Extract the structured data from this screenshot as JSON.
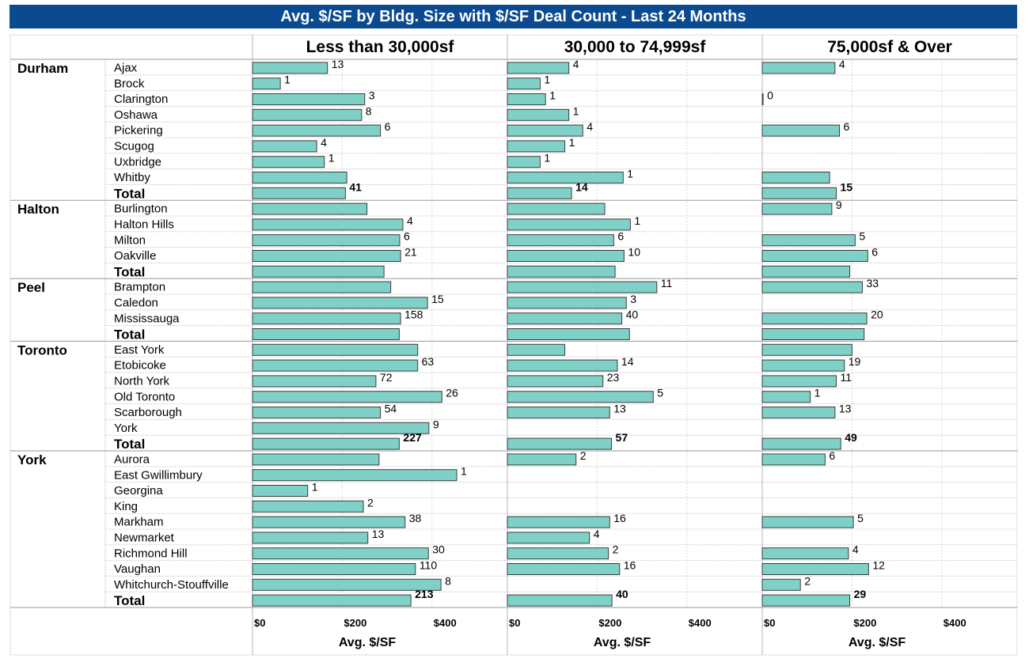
{
  "title": "Avg. $/SF by Bldg. Size with $/SF Deal Count - Last 24 Months",
  "colors": {
    "bar": "#7fd1c8",
    "bar_stroke": "#3c3c3c",
    "title_bg": "#0c4a8f"
  },
  "chart_data": {
    "type": "bar",
    "orientation": "horizontal",
    "columns": [
      "Less than 30,000sf",
      "30,000 to 74,999sf",
      "75,000sf & Over"
    ],
    "xlabel": "Avg. $/SF",
    "xlim": [
      0,
      550
    ],
    "xticks": [
      0,
      200,
      400
    ],
    "xtick_labels": [
      "$0",
      "$200",
      "$400"
    ],
    "grid": true,
    "groups": [
      {
        "region": "Durham",
        "rows": [
          {
            "label": "Ajax",
            "values": [
              167,
              137,
              162
            ],
            "counts": [
              "13",
              "4",
              "4"
            ]
          },
          {
            "label": "Brock",
            "values": [
              62,
              73,
              null
            ],
            "counts": [
              "1",
              "1",
              null
            ]
          },
          {
            "label": "Clarington",
            "values": [
              250,
              85,
              2
            ],
            "counts": [
              "3",
              "1",
              "0"
            ]
          },
          {
            "label": "Oshawa",
            "values": [
              243,
              137,
              null
            ],
            "counts": [
              "8",
              "1",
              null
            ]
          },
          {
            "label": "Pickering",
            "values": [
              285,
              168,
              172
            ],
            "counts": [
              "6",
              "4",
              "6"
            ]
          },
          {
            "label": "Scugog",
            "values": [
              143,
              128,
              null
            ],
            "counts": [
              "4",
              "1",
              null
            ]
          },
          {
            "label": "Uxbridge",
            "values": [
              160,
              73,
              null
            ],
            "counts": [
              "1",
              "1",
              null
            ]
          },
          {
            "label": "Whitby",
            "values": [
              210,
              258,
              150
            ],
            "counts": [
              "",
              "1",
              ""
            ]
          },
          {
            "label": "Total",
            "total": true,
            "values": [
              207,
              143,
              165
            ],
            "counts": [
              "41",
              "14",
              "15"
            ]
          }
        ]
      },
      {
        "region": "Halton",
        "rows": [
          {
            "label": "Burlington",
            "values": [
              255,
              217,
              155
            ],
            "counts": [
              "",
              "",
              "9"
            ]
          },
          {
            "label": "Halton Hills",
            "values": [
              335,
              274,
              null
            ],
            "counts": [
              "4",
              "1",
              null
            ]
          },
          {
            "label": "Milton",
            "values": [
              328,
              237,
              207
            ],
            "counts": [
              "6",
              "6",
              "5"
            ]
          },
          {
            "label": "Oakville",
            "values": [
              330,
              260,
              235
            ],
            "counts": [
              "21",
              "10",
              "6"
            ]
          },
          {
            "label": "Total",
            "total": true,
            "values": [
              293,
              240,
              195
            ],
            "counts": [
              "",
              "",
              ""
            ]
          }
        ]
      },
      {
        "region": "Peel",
        "rows": [
          {
            "label": "Brampton",
            "values": [
              308,
              333,
              223
            ],
            "counts": [
              "",
              "11",
              "33"
            ]
          },
          {
            "label": "Caledon",
            "values": [
              390,
              265,
              null
            ],
            "counts": [
              "15",
              "3",
              null
            ]
          },
          {
            "label": "Mississauga",
            "values": [
              330,
              255,
              233
            ],
            "counts": [
              "158",
              "40",
              "20"
            ]
          },
          {
            "label": "Total",
            "total": true,
            "values": [
              327,
              272,
              227
            ],
            "counts": [
              "",
              "",
              ""
            ]
          }
        ]
      },
      {
        "region": "Toronto",
        "rows": [
          {
            "label": "East York",
            "values": [
              368,
              128,
              200
            ],
            "counts": [
              "",
              "",
              ""
            ]
          },
          {
            "label": "Etobicoke",
            "values": [
              368,
              245,
              183
            ],
            "counts": [
              "63",
              "14",
              "19"
            ]
          },
          {
            "label": "North York",
            "values": [
              275,
              213,
              165
            ],
            "counts": [
              "72",
              "23",
              "11"
            ]
          },
          {
            "label": "Old Toronto",
            "values": [
              422,
              325,
              107
            ],
            "counts": [
              "26",
              "5",
              "1"
            ]
          },
          {
            "label": "Scarborough",
            "values": [
              285,
              228,
              162
            ],
            "counts": [
              "54",
              "13",
              "13"
            ]
          },
          {
            "label": "York",
            "values": [
              393,
              null,
              null
            ],
            "counts": [
              "9",
              null,
              null
            ]
          },
          {
            "label": "Total",
            "total": true,
            "values": [
              327,
              232,
              175
            ],
            "counts": [
              "227",
              "57",
              "49"
            ]
          }
        ]
      },
      {
        "region": "York",
        "rows": [
          {
            "label": "Aurora",
            "values": [
              282,
              153,
              140
            ],
            "counts": [
              "",
              "2",
              "6"
            ]
          },
          {
            "label": "East Gwillimbury",
            "values": [
              455,
              null,
              null
            ],
            "counts": [
              "1",
              null,
              null
            ]
          },
          {
            "label": "Georgina",
            "values": [
              123,
              null,
              null
            ],
            "counts": [
              "1",
              null,
              null
            ]
          },
          {
            "label": "King",
            "values": [
              247,
              null,
              null
            ],
            "counts": [
              "2",
              null,
              null
            ]
          },
          {
            "label": "Markham",
            "values": [
              340,
              228,
              203
            ],
            "counts": [
              "38",
              "16",
              "5"
            ]
          },
          {
            "label": "Newmarket",
            "values": [
              257,
              183,
              null
            ],
            "counts": [
              "13",
              "4",
              null
            ]
          },
          {
            "label": "Richmond Hill",
            "values": [
              392,
              225,
              192
            ],
            "counts": [
              "30",
              "2",
              "4"
            ]
          },
          {
            "label": "Vaughan",
            "values": [
              363,
              250,
              237
            ],
            "counts": [
              "110",
              "16",
              "12"
            ]
          },
          {
            "label": "Whitchurch-Stouffville",
            "values": [
              420,
              null,
              85
            ],
            "counts": [
              "8",
              null,
              "2"
            ]
          },
          {
            "label": "Total",
            "total": true,
            "values": [
              353,
              233,
              195
            ],
            "counts": [
              "213",
              "40",
              "29"
            ]
          }
        ]
      }
    ]
  }
}
